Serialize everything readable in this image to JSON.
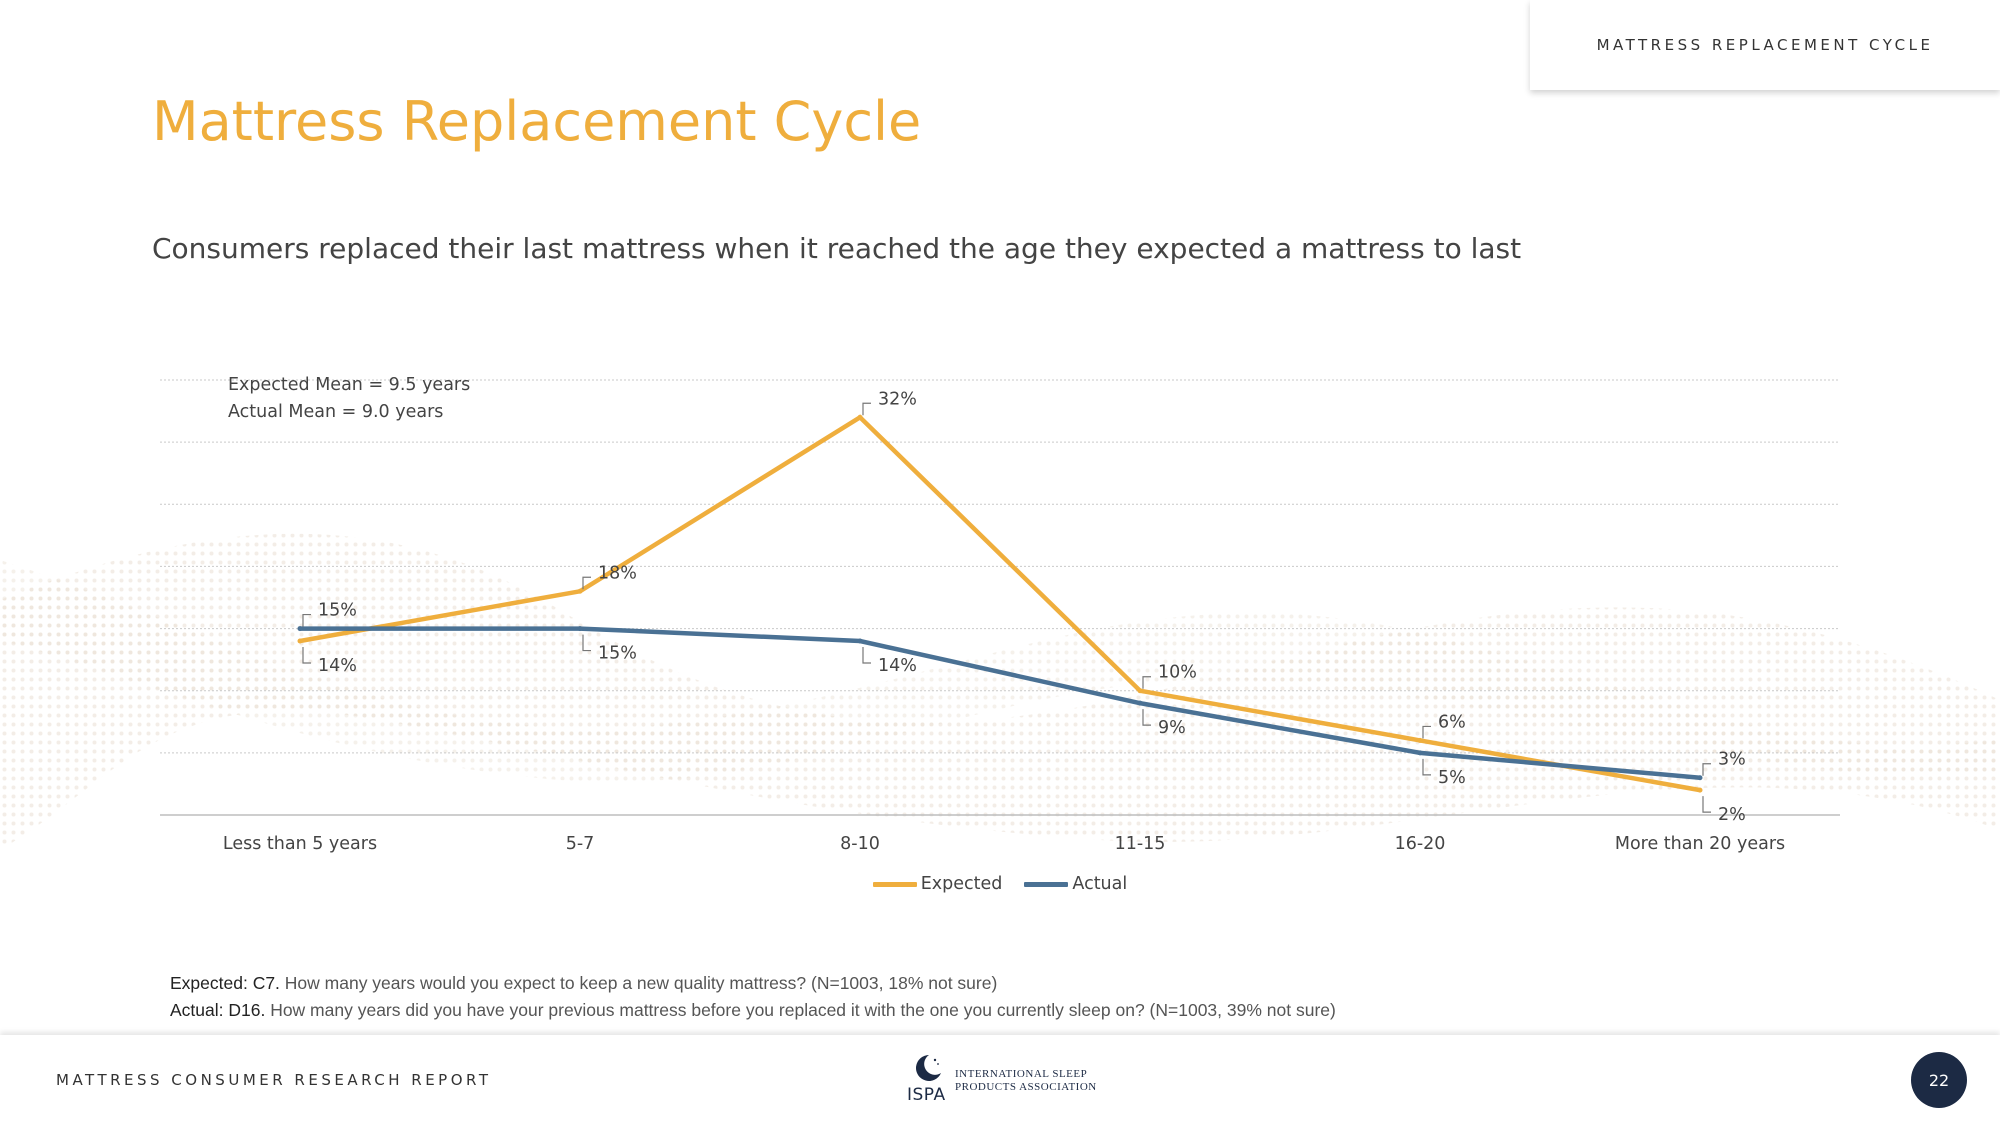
{
  "section_tab": "MATTRESS REPLACEMENT CYCLE",
  "title": "Mattress Replacement Cycle",
  "subtitle": "Consumers replaced their last mattress when it reached the age they expected a mattress to last",
  "means": {
    "expected": "Expected Mean = 9.5 years",
    "actual": "Actual Mean = 9.0 years"
  },
  "chart_data": {
    "type": "line",
    "categories": [
      "Less than 5 years",
      "5-7",
      "8-10",
      "11-15",
      "16-20",
      "More than 20 years"
    ],
    "series": [
      {
        "name": "Expected",
        "values": [
          14,
          18,
          32,
          10,
          6,
          2
        ],
        "labels": [
          "14%",
          "18%",
          "32%",
          "10%",
          "6%",
          "2%"
        ],
        "color": "#efae3d"
      },
      {
        "name": "Actual",
        "values": [
          15,
          15,
          14,
          9,
          5,
          3
        ],
        "labels": [
          "15%",
          "15%",
          "14%",
          "9%",
          "5%",
          "3%"
        ],
        "color": "#4a7194"
      }
    ],
    "ylim": [
      0,
      35
    ],
    "grid": true,
    "legend": "bottom-center"
  },
  "footnotes": [
    {
      "label": "Expected: C7.",
      "text": " How many years would you expect to keep a new quality mattress? (N=1003, 18% not sure)"
    },
    {
      "label": "Actual: D16.",
      "text": " How many years did you have your previous mattress before you replaced it with the one you currently sleep on? (N=1003, 39% not sure)"
    }
  ],
  "footer": {
    "report": "MATTRESS CONSUMER RESEARCH REPORT",
    "logo_abbr": "ISPA",
    "logo_line1": "INTERNATIONAL SLEEP",
    "logo_line2": "PRODUCTS ASSOCIATION",
    "page_number": "22"
  }
}
